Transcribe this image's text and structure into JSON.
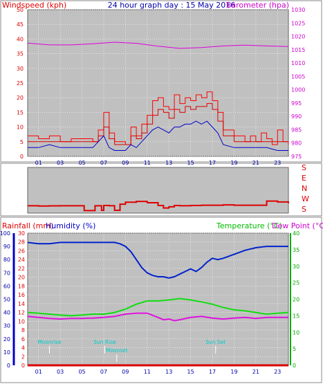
{
  "title": "24 hour graph day : 15 May 2016",
  "colors": {
    "wind": "#dd0000",
    "gust": "#ff0000",
    "avgwind": "#0000cc",
    "baro": "#dd00dd",
    "dir": "#dd0000",
    "humidity": "#0022cc",
    "temperature": "#11dd11",
    "dewpoint": "#dd11dd",
    "rain": "#dd0000",
    "marker": "#00cccc",
    "plot_bg": "#c0c0c0"
  },
  "chart_data": [
    {
      "type": "line",
      "name": "wind-baro",
      "title": "24 hour graph day : 15 May 2016",
      "ylabel_left": "Windspeed (kph)",
      "ylabel_right": "Barometer (hpa)",
      "ylim_left": [
        0,
        50
      ],
      "ylim_right": [
        975,
        1030
      ],
      "yticks_left": [
        "0",
        "5",
        "10",
        "15",
        "20",
        "25",
        "30",
        "35",
        "40",
        "45",
        "50"
      ],
      "yticks_right": [
        "975",
        "980",
        "985",
        "990",
        "995",
        "1000",
        "1005",
        "1010",
        "1015",
        "1020",
        "1025",
        "1030"
      ],
      "xlim": [
        0,
        24
      ],
      "xticks": [
        "01",
        "03",
        "05",
        "07",
        "09",
        "11",
        "13",
        "15",
        "17",
        "19",
        "21",
        "23"
      ],
      "grid": true,
      "series": [
        {
          "key": "gust",
          "x": [
            0,
            1,
            2,
            3,
            4,
            5,
            6,
            6.5,
            7,
            7.5,
            8,
            9,
            9.5,
            10,
            10.5,
            11,
            11.5,
            12,
            12.5,
            13,
            13.5,
            14,
            14.5,
            15,
            15.5,
            16,
            16.5,
            17,
            17.5,
            18,
            19,
            20,
            20.5,
            21,
            21.5,
            22,
            22.5,
            23,
            23.5,
            24
          ],
          "values": [
            7,
            6,
            7,
            5,
            6,
            6,
            5,
            9,
            15,
            8,
            5,
            4,
            10,
            7,
            11,
            14,
            19,
            20,
            17,
            16,
            21,
            18,
            20,
            19,
            21,
            20,
            22,
            19,
            15,
            9,
            7,
            5,
            7,
            5,
            8,
            6,
            4,
            9,
            5,
            4
          ]
        },
        {
          "key": "wind",
          "x": [
            0,
            1,
            2,
            3,
            4,
            5,
            6,
            6.5,
            7,
            7.5,
            8,
            9,
            9.5,
            10,
            10.5,
            11,
            11.5,
            12,
            12.5,
            13,
            13.5,
            14,
            14.5,
            15,
            15.5,
            16,
            16.5,
            17,
            17.5,
            18,
            19,
            20,
            21,
            22,
            23,
            24
          ],
          "values": [
            5,
            5,
            5,
            5,
            5,
            5,
            5,
            7,
            10,
            6,
            4,
            4,
            7,
            6,
            8,
            11,
            14,
            16,
            15,
            13,
            16,
            15,
            17,
            16,
            17,
            17,
            18,
            16,
            12,
            7,
            5,
            5,
            5,
            5,
            5,
            4
          ]
        },
        {
          "key": "avgwind",
          "x": [
            0,
            1,
            2,
            3,
            4,
            5,
            6,
            6.5,
            7,
            7.5,
            8,
            9,
            9.5,
            10,
            10.5,
            11,
            11.5,
            12,
            12.5,
            13,
            13.5,
            14,
            14.5,
            15,
            15.5,
            16,
            16.5,
            17,
            17.5,
            18,
            19,
            20,
            21,
            22,
            23,
            24
          ],
          "values": [
            3,
            3,
            4,
            3,
            3,
            3,
            3,
            5,
            7,
            3,
            2,
            2,
            4,
            3,
            5,
            7,
            9,
            10,
            9,
            8,
            10,
            10,
            11,
            11,
            12,
            11,
            12,
            10,
            8,
            4,
            3,
            3,
            3,
            3,
            2,
            2
          ]
        },
        {
          "key": "baro",
          "x": [
            0,
            2,
            4,
            6,
            8,
            10,
            12,
            14,
            16,
            18,
            20,
            22,
            24
          ],
          "values": [
            1017.5,
            1016.8,
            1016.8,
            1017.2,
            1017.8,
            1017.4,
            1016.3,
            1015.5,
            1015.8,
            1016.4,
            1016.7,
            1016.4,
            1016.2
          ]
        }
      ]
    },
    {
      "type": "line",
      "name": "wind-direction",
      "direction_labels": [
        "S",
        "E",
        "N",
        "W",
        "S"
      ],
      "ylim": [
        0,
        360
      ],
      "xlim": [
        0,
        24
      ],
      "series": [
        {
          "key": "dir",
          "x": [
            0,
            1,
            2,
            3,
            4,
            5,
            5.2,
            6,
            6.2,
            6.8,
            7,
            7.5,
            8,
            8.5,
            9,
            10,
            11,
            12,
            12.5,
            13,
            13.5,
            14,
            15,
            16,
            17,
            18,
            19,
            20,
            21,
            22,
            23,
            24
          ],
          "values": [
            58,
            56,
            57,
            58,
            58,
            58,
            20,
            20,
            58,
            22,
            60,
            58,
            22,
            70,
            86,
            92,
            82,
            60,
            40,
            50,
            60,
            58,
            60,
            62,
            62,
            65,
            62,
            62,
            62,
            95,
            88,
            78
          ]
        }
      ]
    },
    {
      "type": "line",
      "name": "temp-hum-rain",
      "ylabel_left_1": "Rainfall (mm)",
      "ylabel_left_2": "Humidity (%)",
      "ylabel_right_1": "Temperature (°C)",
      "ylabel_right_2": "Dew Point (°C)",
      "ylim_humidity": [
        0,
        100
      ],
      "ylim_rain": [
        0,
        30
      ],
      "ylim_temp": [
        0,
        40
      ],
      "yticks_humidity": [
        "0",
        "10",
        "20",
        "30",
        "40",
        "50",
        "60",
        "70",
        "80",
        "90",
        "100"
      ],
      "yticks_rain": [
        "0",
        "2",
        "4",
        "6",
        "8",
        "10",
        "12",
        "14",
        "16",
        "18",
        "20",
        "22",
        "24",
        "26",
        "28",
        "30"
      ],
      "yticks_temp": [
        "0",
        "5",
        "10",
        "15",
        "20",
        "25",
        "30",
        "35",
        "40"
      ],
      "xlim": [
        0,
        24
      ],
      "xticks": [
        "01",
        "03",
        "05",
        "07",
        "09",
        "11",
        "13",
        "15",
        "17",
        "19",
        "21",
        "23"
      ],
      "grid": true,
      "annotations": [
        {
          "label": "Moonrise",
          "x": 2.0
        },
        {
          "label": "Sun Rise",
          "x": 7.1
        },
        {
          "label": "Moonset",
          "x": 8.2
        },
        {
          "label": "Sun Set",
          "x": 17.3
        }
      ],
      "series": [
        {
          "key": "humidity",
          "x": [
            0,
            1,
            2,
            3,
            4,
            5,
            6,
            7,
            8,
            8.5,
            9,
            9.5,
            10,
            10.5,
            11,
            11.5,
            12,
            12.5,
            13,
            13.5,
            14,
            14.5,
            15,
            15.5,
            16,
            16.5,
            17,
            17.5,
            18,
            19,
            20,
            21,
            22,
            23,
            24
          ],
          "values": [
            93,
            92,
            92,
            93,
            93,
            93,
            93,
            93,
            93,
            92,
            90,
            86,
            80,
            74,
            70,
            68,
            67,
            67,
            66,
            67,
            69,
            71,
            73,
            71,
            74,
            78,
            81,
            80,
            81,
            84,
            87,
            89,
            90,
            90,
            90
          ],
          "unit_axis": "humidity"
        },
        {
          "key": "temperature",
          "x": [
            0,
            1,
            2,
            3,
            4,
            5,
            6,
            7,
            8,
            9,
            10,
            11,
            12,
            13,
            14,
            15,
            16,
            17,
            18,
            19,
            20,
            21,
            22,
            23,
            24
          ],
          "values": [
            16,
            15.8,
            15.5,
            15.2,
            15,
            15.2,
            15.5,
            15.5,
            16,
            17,
            18.5,
            19.5,
            19.5,
            19.8,
            20.2,
            19.8,
            19.2,
            18.5,
            17.5,
            16.8,
            16.5,
            16,
            15.5,
            15.8,
            16
          ],
          "unit_axis": "temp"
        },
        {
          "key": "dewpoint",
          "x": [
            0,
            1,
            2,
            3,
            4,
            5,
            6,
            7,
            8,
            9,
            10,
            11,
            12,
            12.5,
            13,
            13.5,
            14,
            15,
            16,
            17,
            18,
            19,
            20,
            21,
            22,
            23,
            24
          ],
          "values": [
            14.8,
            14.5,
            14.2,
            14,
            14.2,
            14.2,
            14.3,
            14.5,
            14.8,
            15.5,
            15.8,
            15.8,
            14.5,
            13.8,
            14,
            13.5,
            13.8,
            14.5,
            14.8,
            14.3,
            14,
            14.3,
            14.5,
            14.2,
            14.5,
            14.5,
            14.5
          ],
          "unit_axis": "temp"
        },
        {
          "key": "rain",
          "x": [
            0,
            24
          ],
          "values": [
            0,
            0
          ],
          "unit_axis": "rain"
        }
      ]
    }
  ]
}
